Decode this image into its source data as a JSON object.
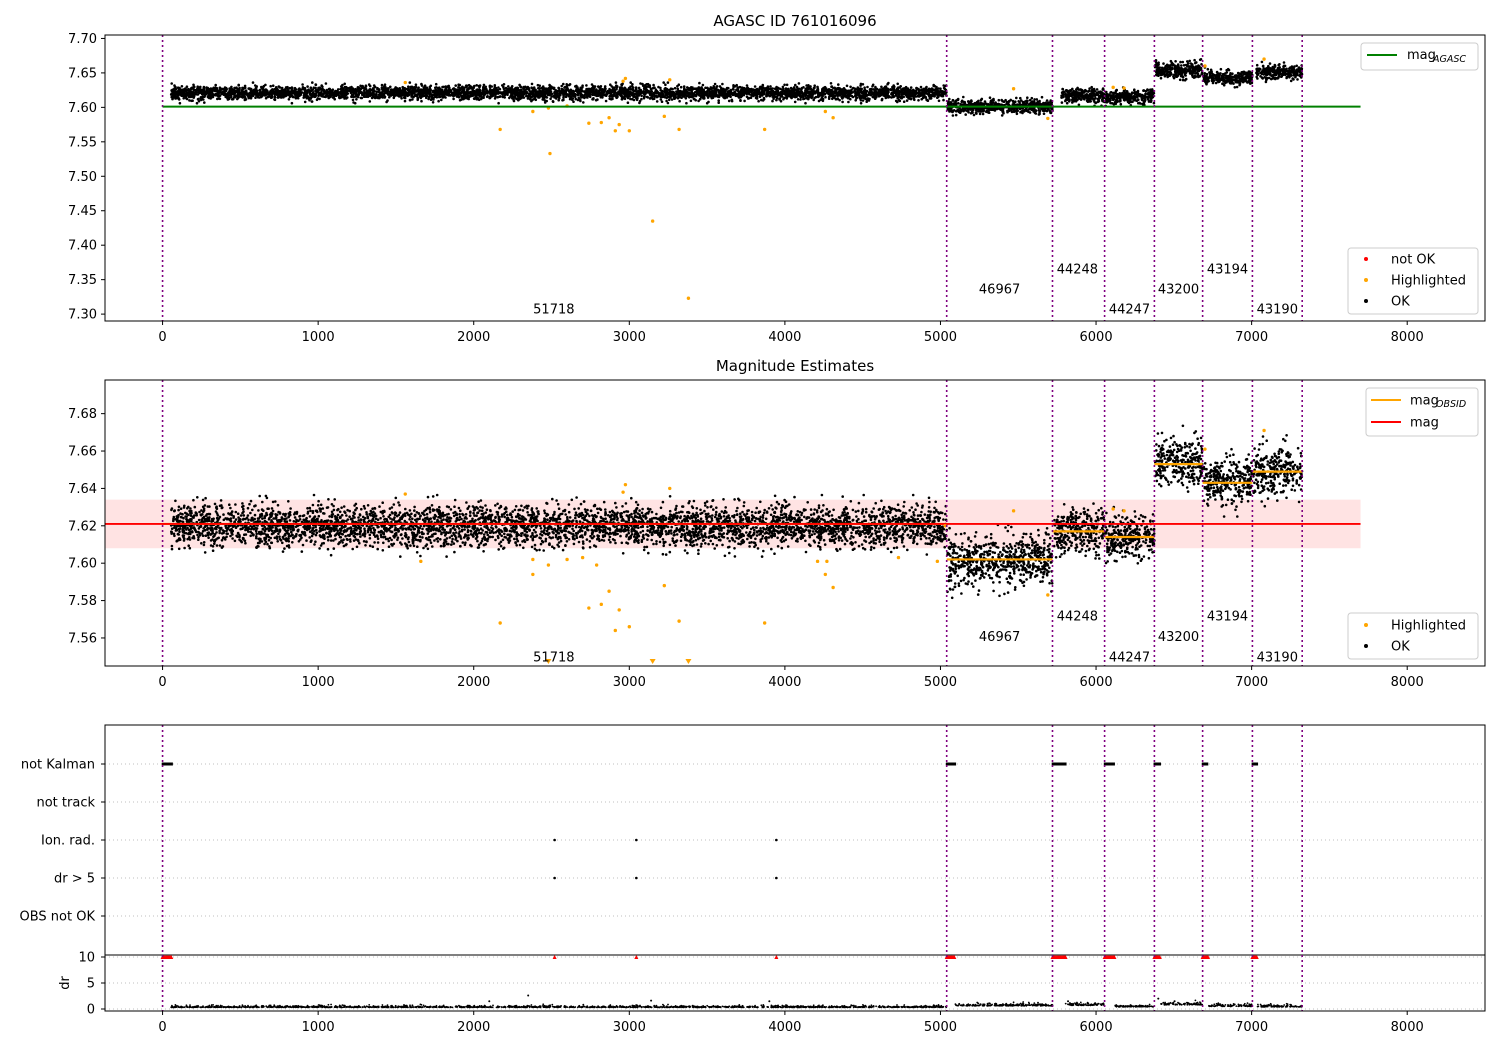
{
  "chart_data": [
    {
      "type": "scatter",
      "title": "AGASC ID 761016096",
      "xlim": [
        -370,
        8500
      ],
      "ylim": [
        7.29,
        7.705
      ],
      "xticks": [
        0,
        1000,
        2000,
        3000,
        4000,
        5000,
        6000,
        7000,
        8000
      ],
      "yticks": [
        7.3,
        7.35,
        7.4,
        7.45,
        7.5,
        7.55,
        7.6,
        7.65,
        7.7
      ],
      "legend_upper": [
        {
          "name": "mag",
          "sub": "AGASC",
          "color": "#008000"
        }
      ],
      "legend_lower": [
        {
          "name": "not OK",
          "color": "#ff0000"
        },
        {
          "name": "Highlighted",
          "color": "#ffa500"
        },
        {
          "name": "OK",
          "color": "#000000"
        }
      ],
      "mag_agasc": {
        "value": 7.601,
        "x_range": [
          0,
          7700
        ]
      },
      "obs_boundaries": [
        0,
        5040,
        5720,
        6055,
        6375,
        6685,
        7005,
        7325
      ],
      "obs_labels": [
        {
          "text": "51718",
          "x": 2515,
          "y": 7.308
        },
        {
          "text": "46967",
          "x": 5380,
          "y": 7.337
        },
        {
          "text": "44248",
          "x": 5880,
          "y": 7.366
        },
        {
          "text": "44247",
          "x": 6215,
          "y": 7.308
        },
        {
          "text": "43200",
          "x": 6530,
          "y": 7.337
        },
        {
          "text": "43194",
          "x": 6845,
          "y": 7.366
        },
        {
          "text": "43190",
          "x": 7165,
          "y": 7.308
        }
      ],
      "segments": [
        {
          "x": [
            55,
            5040
          ],
          "mean": 7.621,
          "spread": 0.005
        },
        {
          "x": [
            5045,
            5720
          ],
          "mean": 7.601,
          "spread": 0.005
        },
        {
          "x": [
            5775,
            6055
          ],
          "mean": 7.617,
          "spread": 0.005
        },
        {
          "x": [
            6060,
            6375
          ],
          "mean": 7.615,
          "spread": 0.005
        },
        {
          "x": [
            6380,
            6685
          ],
          "mean": 7.654,
          "spread": 0.006
        },
        {
          "x": [
            6690,
            7005
          ],
          "mean": 7.643,
          "spread": 0.005
        },
        {
          "x": [
            7030,
            7325
          ],
          "mean": 7.651,
          "spread": 0.005
        }
      ],
      "highlighted_points": [
        [
          2170,
          7.568
        ],
        [
          2380,
          7.594
        ],
        [
          2480,
          7.599
        ],
        [
          2490,
          7.533
        ],
        [
          2600,
          7.602
        ],
        [
          2740,
          7.577
        ],
        [
          2820,
          7.578
        ],
        [
          2870,
          7.585
        ],
        [
          2910,
          7.566
        ],
        [
          2935,
          7.575
        ],
        [
          2960,
          7.638
        ],
        [
          2975,
          7.642
        ],
        [
          3000,
          7.566
        ],
        [
          3150,
          7.435
        ],
        [
          3225,
          7.587
        ],
        [
          3260,
          7.64
        ],
        [
          3320,
          7.568
        ],
        [
          3380,
          7.323
        ],
        [
          3870,
          7.568
        ],
        [
          4260,
          7.594
        ],
        [
          4310,
          7.585
        ],
        [
          1560,
          7.636
        ],
        [
          5470,
          7.627
        ],
        [
          5690,
          7.584
        ],
        [
          6110,
          7.629
        ],
        [
          6180,
          7.628
        ],
        [
          6700,
          7.66
        ],
        [
          7080,
          7.67
        ]
      ]
    },
    {
      "type": "scatter",
      "title": "Magnitude Estimates",
      "xlim": [
        -370,
        8500
      ],
      "ylim": [
        7.545,
        7.698
      ],
      "xticks": [
        0,
        1000,
        2000,
        3000,
        4000,
        5000,
        6000,
        7000,
        8000
      ],
      "yticks": [
        7.56,
        7.58,
        7.6,
        7.62,
        7.64,
        7.66,
        7.68
      ],
      "legend_upper": [
        {
          "name": "mag",
          "sub": "OBSID",
          "color": "#ffa500"
        },
        {
          "name": "mag",
          "sub": "",
          "color": "#ff0000"
        }
      ],
      "legend_lower": [
        {
          "name": "Highlighted",
          "color": "#ffa500"
        },
        {
          "name": "OK",
          "color": "#000000"
        }
      ],
      "mag_mean": {
        "value": 7.621,
        "x_range": [
          0,
          7700
        ]
      },
      "mag_band": [
        7.608,
        7.634
      ],
      "obs_boundaries": [
        0,
        5040,
        5720,
        6055,
        6375,
        6685,
        7005,
        7325
      ],
      "obs_labels": [
        {
          "text": "51718",
          "x": 2515,
          "y": 7.55
        },
        {
          "text": "46967",
          "x": 5380,
          "y": 7.561
        },
        {
          "text": "44248",
          "x": 5880,
          "y": 7.572
        },
        {
          "text": "44247",
          "x": 6215,
          "y": 7.55
        },
        {
          "text": "43200",
          "x": 6530,
          "y": 7.561
        },
        {
          "text": "43194",
          "x": 6845,
          "y": 7.572
        },
        {
          "text": "43190",
          "x": 7165,
          "y": 7.55
        }
      ],
      "mag_obsid": [
        {
          "x": [
            0,
            5040
          ],
          "value": 7.621
        },
        {
          "x": [
            5040,
            5720
          ],
          "value": 7.602
        },
        {
          "x": [
            5720,
            6055
          ],
          "value": 7.617
        },
        {
          "x": [
            6055,
            6375
          ],
          "value": 7.614
        },
        {
          "x": [
            6375,
            6685
          ],
          "value": 7.653
        },
        {
          "x": [
            6685,
            7005
          ],
          "value": 7.643
        },
        {
          "x": [
            7005,
            7325
          ],
          "value": 7.649
        }
      ],
      "segments": [
        {
          "x": [
            55,
            5040
          ],
          "mean": 7.62,
          "spread": 0.0055
        },
        {
          "x": [
            5045,
            5720
          ],
          "mean": 7.601,
          "spread": 0.0065
        },
        {
          "x": [
            5725,
            6055
          ],
          "mean": 7.617,
          "spread": 0.006
        },
        {
          "x": [
            6060,
            6375
          ],
          "mean": 7.614,
          "spread": 0.006
        },
        {
          "x": [
            6380,
            6685
          ],
          "mean": 7.654,
          "spread": 0.0065
        },
        {
          "x": [
            6690,
            7005
          ],
          "mean": 7.643,
          "spread": 0.006
        },
        {
          "x": [
            7010,
            7325
          ],
          "mean": 7.65,
          "spread": 0.0065
        }
      ],
      "highlighted_points": [
        [
          2170,
          7.568
        ],
        [
          2380,
          7.594
        ],
        [
          2380,
          7.602
        ],
        [
          2480,
          7.599
        ],
        [
          2600,
          7.602
        ],
        [
          2700,
          7.603
        ],
        [
          2740,
          7.576
        ],
        [
          2790,
          7.599
        ],
        [
          2820,
          7.578
        ],
        [
          2870,
          7.585
        ],
        [
          2910,
          7.564
        ],
        [
          2935,
          7.575
        ],
        [
          2960,
          7.638
        ],
        [
          2975,
          7.642
        ],
        [
          3000,
          7.566
        ],
        [
          3225,
          7.588
        ],
        [
          3260,
          7.64
        ],
        [
          3320,
          7.569
        ],
        [
          3870,
          7.568
        ],
        [
          4210,
          7.601
        ],
        [
          4260,
          7.594
        ],
        [
          4270,
          7.601
        ],
        [
          4310,
          7.587
        ],
        [
          1560,
          7.637
        ],
        [
          1660,
          7.601
        ],
        [
          4730,
          7.603
        ],
        [
          4980,
          7.601
        ],
        [
          5470,
          7.628
        ],
        [
          5690,
          7.583
        ],
        [
          6110,
          7.629
        ],
        [
          6180,
          7.628
        ],
        [
          6700,
          7.661
        ],
        [
          7080,
          7.671
        ],
        [
          5030,
          7.62
        ]
      ],
      "below_range_markers": [
        2480,
        3150,
        3380
      ]
    },
    {
      "type": "scatter",
      "xlim": [
        -370,
        8500
      ],
      "flag_rows": [
        "not Kalman",
        "not track",
        "Ion. rad.",
        "dr > 5",
        "OBS not OK"
      ],
      "dr_ticks": [
        0,
        5,
        10
      ],
      "dr_axis_label": "dr",
      "obs_boundaries": [
        0,
        5040,
        5720,
        6055,
        6375,
        6685,
        7005,
        7325
      ],
      "not_kalman_ranges": [
        [
          0,
          60
        ],
        [
          5040,
          5095
        ],
        [
          5720,
          5805
        ],
        [
          6055,
          6120
        ],
        [
          6375,
          6415
        ],
        [
          6685,
          6720
        ],
        [
          7005,
          7035
        ]
      ],
      "ion_rad_points": [
        2520,
        3045,
        3945
      ],
      "dr5_points": [
        2520,
        3045,
        3945
      ],
      "dr_red_ranges": [
        [
          0,
          60
        ],
        [
          5040,
          5095
        ],
        [
          5720,
          5805
        ],
        [
          6055,
          6120
        ],
        [
          6375,
          6415
        ],
        [
          6685,
          6720
        ],
        [
          7005,
          7035
        ]
      ],
      "dr_red_points": [
        2520,
        3045,
        3945
      ],
      "dr_segments": [
        {
          "x": [
            55,
            5040
          ],
          "mean": 0.3,
          "spread": 0.2
        },
        {
          "x": [
            5095,
            5720
          ],
          "mean": 0.6,
          "spread": 0.3
        },
        {
          "x": [
            5805,
            6055
          ],
          "mean": 0.7,
          "spread": 0.3
        },
        {
          "x": [
            6120,
            6375
          ],
          "mean": 0.4,
          "spread": 0.2
        },
        {
          "x": [
            6415,
            6685
          ],
          "mean": 0.8,
          "spread": 0.35
        },
        {
          "x": [
            6720,
            7005
          ],
          "mean": 0.5,
          "spread": 0.3
        },
        {
          "x": [
            7035,
            7325
          ],
          "mean": 0.4,
          "spread": 0.25
        }
      ],
      "dr_outliers": [
        [
          2100,
          1.5
        ],
        [
          2350,
          2.6
        ],
        [
          3140,
          1.6
        ],
        [
          3900,
          1.5
        ],
        [
          6400,
          2.0
        ],
        [
          5820,
          1.5
        ]
      ]
    }
  ]
}
